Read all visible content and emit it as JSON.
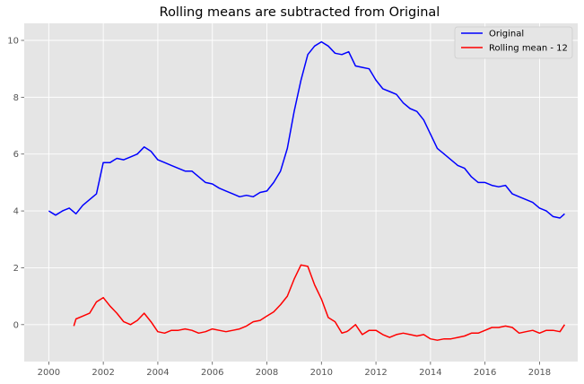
{
  "chart_data": {
    "type": "line",
    "title": "Rolling means are subtracted from Original",
    "xlabel": "",
    "ylabel": "",
    "xlim": [
      1999.1,
      2019.4
    ],
    "ylim": [
      -1.3,
      10.6
    ],
    "x_ticks": [
      {
        "value": 2000,
        "label": "2000"
      },
      {
        "value": 2002,
        "label": "2002"
      },
      {
        "value": 2004,
        "label": "2004"
      },
      {
        "value": 2006,
        "label": "2006"
      },
      {
        "value": 2008,
        "label": "2008"
      },
      {
        "value": 2010,
        "label": "2010"
      },
      {
        "value": 2012,
        "label": "2012"
      },
      {
        "value": 2014,
        "label": "2014"
      },
      {
        "value": 2016,
        "label": "2016"
      },
      {
        "value": 2018,
        "label": "2018"
      }
    ],
    "y_ticks": [
      {
        "value": 0,
        "label": "0"
      },
      {
        "value": 2,
        "label": "2"
      },
      {
        "value": 4,
        "label": "4"
      },
      {
        "value": 6,
        "label": "6"
      },
      {
        "value": 8,
        "label": "8"
      },
      {
        "value": 10,
        "label": "10"
      }
    ],
    "grid": true,
    "legend_position": "upper-right",
    "background": "#e5e5e5",
    "series": [
      {
        "name": "Original",
        "color": "#0000ff",
        "x": [
          2000.0,
          2000.25,
          2000.5,
          2000.75,
          2001.0,
          2001.25,
          2001.5,
          2001.75,
          2002.0,
          2002.25,
          2002.5,
          2002.75,
          2003.0,
          2003.25,
          2003.5,
          2003.75,
          2004.0,
          2004.25,
          2004.5,
          2004.75,
          2005.0,
          2005.25,
          2005.5,
          2005.75,
          2006.0,
          2006.25,
          2006.5,
          2006.75,
          2007.0,
          2007.25,
          2007.5,
          2007.75,
          2008.0,
          2008.25,
          2008.5,
          2008.75,
          2009.0,
          2009.25,
          2009.5,
          2009.75,
          2010.0,
          2010.25,
          2010.5,
          2010.75,
          2011.0,
          2011.25,
          2011.5,
          2011.75,
          2012.0,
          2012.25,
          2012.5,
          2012.75,
          2013.0,
          2013.25,
          2013.5,
          2013.75,
          2014.0,
          2014.25,
          2014.5,
          2014.75,
          2015.0,
          2015.25,
          2015.5,
          2015.75,
          2016.0,
          2016.25,
          2016.5,
          2016.75,
          2017.0,
          2017.25,
          2017.5,
          2017.75,
          2018.0,
          2018.25,
          2018.5,
          2018.75,
          2018.92
        ],
        "y": [
          4.0,
          3.85,
          4.0,
          4.1,
          3.9,
          4.2,
          4.4,
          4.6,
          5.7,
          5.7,
          5.85,
          5.8,
          5.9,
          6.0,
          6.25,
          6.1,
          5.8,
          5.7,
          5.6,
          5.5,
          5.4,
          5.4,
          5.2,
          5.0,
          4.95,
          4.8,
          4.7,
          4.6,
          4.5,
          4.55,
          4.5,
          4.65,
          4.7,
          5.0,
          5.4,
          6.2,
          7.5,
          8.6,
          9.5,
          9.8,
          9.95,
          9.8,
          9.55,
          9.5,
          9.6,
          9.1,
          9.05,
          9.0,
          8.6,
          8.3,
          8.2,
          8.1,
          7.8,
          7.6,
          7.5,
          7.2,
          6.7,
          6.2,
          6.0,
          5.8,
          5.6,
          5.5,
          5.2,
          5.0,
          5.0,
          4.9,
          4.85,
          4.9,
          4.6,
          4.5,
          4.4,
          4.3,
          4.1,
          4.0,
          3.8,
          3.75,
          3.9
        ]
      },
      {
        "name": "Rolling mean - 12",
        "color": "#ff0000",
        "x": [
          2000.92,
          2001.0,
          2001.25,
          2001.5,
          2001.75,
          2002.0,
          2002.25,
          2002.5,
          2002.75,
          2003.0,
          2003.25,
          2003.5,
          2003.75,
          2004.0,
          2004.25,
          2004.5,
          2004.75,
          2005.0,
          2005.25,
          2005.5,
          2005.75,
          2006.0,
          2006.25,
          2006.5,
          2006.75,
          2007.0,
          2007.25,
          2007.5,
          2007.75,
          2008.0,
          2008.25,
          2008.5,
          2008.75,
          2009.0,
          2009.25,
          2009.5,
          2009.75,
          2010.0,
          2010.25,
          2010.5,
          2010.75,
          2010.92,
          2011.0,
          2011.25,
          2011.5,
          2011.75,
          2012.0,
          2012.25,
          2012.5,
          2012.75,
          2013.0,
          2013.25,
          2013.5,
          2013.75,
          2014.0,
          2014.25,
          2014.5,
          2014.75,
          2015.0,
          2015.25,
          2015.5,
          2015.75,
          2016.0,
          2016.25,
          2016.5,
          2016.75,
          2017.0,
          2017.25,
          2017.5,
          2017.75,
          2018.0,
          2018.25,
          2018.5,
          2018.75,
          2018.92
        ],
        "y": [
          -0.05,
          0.2,
          0.3,
          0.4,
          0.8,
          0.95,
          0.65,
          0.4,
          0.1,
          0.0,
          0.15,
          0.4,
          0.1,
          -0.25,
          -0.3,
          -0.2,
          -0.2,
          -0.15,
          -0.2,
          -0.3,
          -0.25,
          -0.15,
          -0.2,
          -0.25,
          -0.2,
          -0.15,
          -0.05,
          0.1,
          0.15,
          0.3,
          0.45,
          0.7,
          1.0,
          1.6,
          2.1,
          2.05,
          1.4,
          0.9,
          0.25,
          0.1,
          -0.3,
          -0.25,
          -0.2,
          0.0,
          -0.35,
          -0.2,
          -0.2,
          -0.35,
          -0.45,
          -0.35,
          -0.3,
          -0.35,
          -0.4,
          -0.35,
          -0.5,
          -0.55,
          -0.5,
          -0.5,
          -0.45,
          -0.4,
          -0.3,
          -0.3,
          -0.2,
          -0.1,
          -0.1,
          -0.05,
          -0.1,
          -0.3,
          -0.25,
          -0.2,
          -0.3,
          -0.2,
          -0.2,
          -0.25,
          0.0
        ]
      }
    ]
  }
}
